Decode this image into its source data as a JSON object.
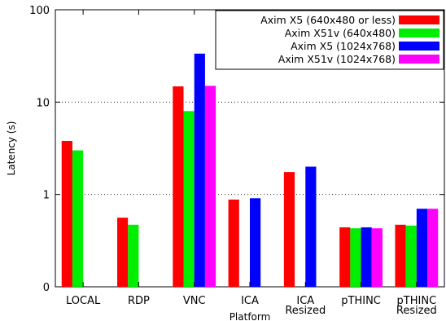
{
  "chart_data": {
    "type": "bar",
    "scale": "log",
    "ylim": [
      0.1,
      100
    ],
    "xlabel": "Platform",
    "ylabel": "Latency (s)",
    "y_tick_labels": [
      "0",
      "1",
      "10",
      "100"
    ],
    "y_tick_values": [
      0.1,
      1,
      10,
      100
    ],
    "grid": "horizontal dotted at 1 and 10",
    "legend_position": "top-right",
    "categories": [
      [
        "LOCAL"
      ],
      [
        "RDP"
      ],
      [
        "VNC"
      ],
      [
        "ICA"
      ],
      [
        "ICA",
        "Resized"
      ],
      [
        "pTHINC"
      ],
      [
        "pTHINC",
        "Resized"
      ]
    ],
    "series": [
      {
        "name": "Axim X5 (640x480 or less)",
        "color": "#ff0000",
        "values": [
          3.8,
          0.56,
          14.8,
          0.88,
          1.75,
          0.44,
          0.47
        ]
      },
      {
        "name": "Axim X51v (640x480)",
        "color": "#00ee00",
        "values": [
          3.0,
          0.47,
          8.0,
          null,
          null,
          0.43,
          0.46
        ]
      },
      {
        "name": "Axim X5 (1024x768)",
        "color": "#0000ff",
        "values": [
          null,
          null,
          33.5,
          0.91,
          2.0,
          0.44,
          0.7
        ]
      },
      {
        "name": "Axim X51v (1024x768)",
        "color": "#ff00ff",
        "values": [
          null,
          null,
          15.0,
          null,
          null,
          0.43,
          0.7
        ]
      }
    ]
  }
}
